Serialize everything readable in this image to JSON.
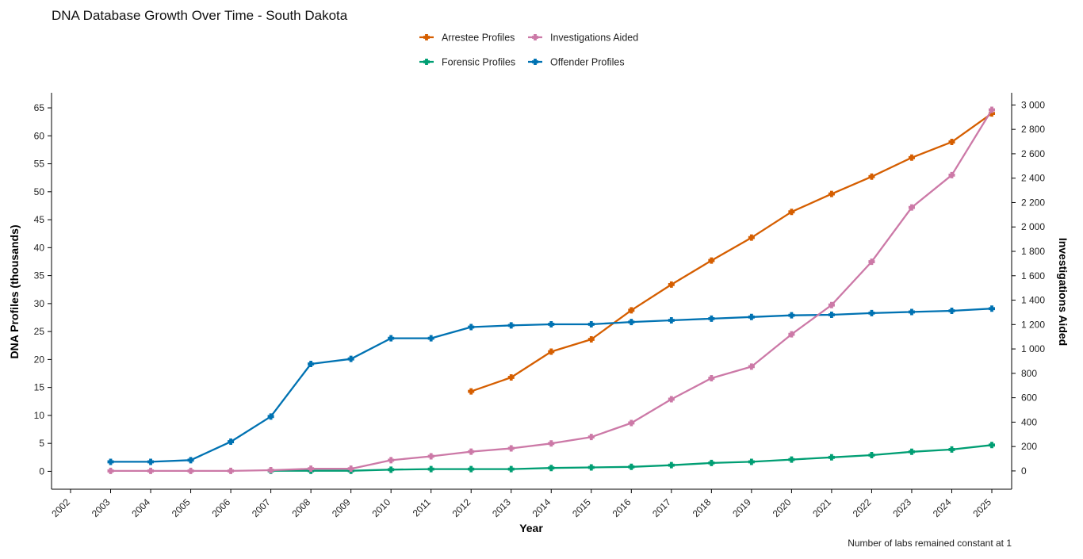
{
  "chart_data": {
    "type": "line",
    "title": "DNA Database Growth Over Time - South Dakota",
    "xlabel": "Year",
    "ylabel": "DNA Profiles (thousands)",
    "y2label": "Investigations Aided",
    "x": [
      2002,
      2003,
      2004,
      2005,
      2006,
      2007,
      2008,
      2009,
      2010,
      2011,
      2012,
      2013,
      2014,
      2015,
      2016,
      2017,
      2018,
      2019,
      2020,
      2021,
      2022,
      2023,
      2024,
      2025
    ],
    "xlim": [
      2002,
      2025
    ],
    "ylim": [
      -3.2,
      67.7
    ],
    "yticks": [
      0,
      5,
      10,
      15,
      20,
      25,
      30,
      35,
      40,
      45,
      50,
      55,
      60,
      65
    ],
    "y2lim": [
      -150,
      3100
    ],
    "y2ticks": [
      0,
      200,
      400,
      600,
      800,
      1000,
      1200,
      1400,
      1600,
      1800,
      2000,
      2200,
      2400,
      2600,
      2800,
      3000
    ],
    "y2tick_labels": [
      "0",
      "200",
      "400",
      "600",
      "800",
      "1 000",
      "1 200",
      "1 400",
      "1 600",
      "1 800",
      "2 000",
      "2 200",
      "2 400",
      "2 600",
      "2 800",
      "3 000"
    ],
    "grid": false,
    "legend_position": "top-center",
    "legend_order": [
      0,
      3,
      1,
      2
    ],
    "series": [
      {
        "name": "Arrestee Profiles",
        "axis": "left",
        "color": "#D55E00",
        "x": [
          2012,
          2013,
          2014,
          2015,
          2016,
          2017,
          2018,
          2019,
          2020,
          2021,
          2022,
          2023,
          2024,
          2025
        ],
        "values": [
          14.3,
          16.8,
          21.4,
          23.6,
          28.8,
          33.4,
          37.7,
          41.8,
          46.4,
          49.6,
          52.7,
          56.1,
          58.9,
          64.0
        ]
      },
      {
        "name": "Forensic Profiles",
        "axis": "left",
        "color": "#009E73",
        "x": [
          2007,
          2008,
          2009,
          2010,
          2011,
          2012,
          2013,
          2014,
          2015,
          2016,
          2017,
          2018,
          2019,
          2020,
          2021,
          2022,
          2023,
          2024,
          2025
        ],
        "values": [
          0.1,
          0.1,
          0.1,
          0.3,
          0.4,
          0.4,
          0.4,
          0.6,
          0.7,
          0.8,
          1.1,
          1.5,
          1.7,
          2.1,
          2.5,
          2.9,
          3.5,
          3.9,
          4.7
        ]
      },
      {
        "name": "Offender Profiles",
        "axis": "left",
        "color": "#0072B2",
        "x": [
          2003,
          2004,
          2005,
          2006,
          2007,
          2008,
          2009,
          2010,
          2011,
          2012,
          2013,
          2014,
          2015,
          2016,
          2017,
          2018,
          2019,
          2020,
          2021,
          2022,
          2023,
          2024,
          2025
        ],
        "values": [
          1.7,
          1.7,
          2.0,
          5.3,
          9.8,
          19.2,
          20.1,
          23.8,
          23.8,
          25.8,
          26.1,
          26.3,
          26.3,
          26.7,
          27.0,
          27.3,
          27.6,
          27.9,
          28.0,
          28.3,
          28.5,
          28.7,
          29.1
        ]
      },
      {
        "name": "Investigations Aided",
        "axis": "right",
        "color": "#CC79A7",
        "x": [
          2003,
          2004,
          2005,
          2006,
          2007,
          2008,
          2009,
          2010,
          2011,
          2012,
          2013,
          2014,
          2015,
          2016,
          2017,
          2018,
          2019,
          2020,
          2021,
          2022,
          2023,
          2024,
          2025
        ],
        "values": [
          0,
          0,
          0,
          0,
          6,
          18,
          18,
          88,
          120,
          158,
          185,
          225,
          278,
          393,
          588,
          760,
          855,
          1120,
          1360,
          1715,
          2160,
          2425,
          2960
        ]
      }
    ],
    "annotations": [
      "Number of labs remained constant at 1"
    ]
  }
}
